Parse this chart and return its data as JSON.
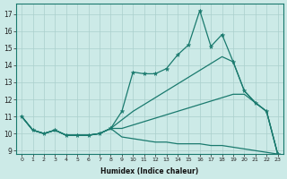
{
  "xlabel": "Humidex (Indice chaleur)",
  "ylabel": "",
  "xlim": [
    -0.5,
    23.5
  ],
  "ylim": [
    8.8,
    17.6
  ],
  "yticks": [
    9,
    10,
    11,
    12,
    13,
    14,
    15,
    16,
    17
  ],
  "xticks": [
    0,
    1,
    2,
    3,
    4,
    5,
    6,
    7,
    8,
    9,
    10,
    11,
    12,
    13,
    14,
    15,
    16,
    17,
    18,
    19,
    20,
    21,
    22,
    23
  ],
  "bg_color": "#cceae7",
  "line_color": "#1a7a6e",
  "grid_color": "#aacfcc",
  "series": [
    {
      "y": [
        11.0,
        10.2,
        10.0,
        10.2,
        9.9,
        9.9,
        9.9,
        10.0,
        10.3,
        11.3,
        13.6,
        13.5,
        13.5,
        13.8,
        14.6,
        15.2,
        17.2,
        15.1,
        15.8,
        14.2,
        12.5,
        11.8,
        11.3,
        8.8
      ],
      "marker": true
    },
    {
      "y": [
        11.0,
        10.2,
        10.0,
        10.2,
        9.9,
        9.9,
        9.9,
        10.0,
        10.3,
        10.8,
        11.3,
        11.7,
        12.1,
        12.5,
        12.9,
        13.3,
        13.7,
        14.1,
        14.5,
        14.2,
        12.5,
        11.8,
        11.3,
        8.8
      ],
      "marker": false
    },
    {
      "y": [
        11.0,
        10.2,
        10.0,
        10.2,
        9.9,
        9.9,
        9.9,
        10.0,
        10.3,
        10.3,
        10.5,
        10.7,
        10.9,
        11.1,
        11.3,
        11.5,
        11.7,
        11.9,
        12.1,
        12.3,
        12.3,
        11.8,
        11.3,
        8.8
      ],
      "marker": false
    },
    {
      "y": [
        11.0,
        10.2,
        10.0,
        10.2,
        9.9,
        9.9,
        9.9,
        10.0,
        10.3,
        9.8,
        9.7,
        9.6,
        9.5,
        9.5,
        9.4,
        9.4,
        9.4,
        9.3,
        9.3,
        9.2,
        9.1,
        9.0,
        8.9,
        8.8
      ],
      "marker": false
    }
  ]
}
